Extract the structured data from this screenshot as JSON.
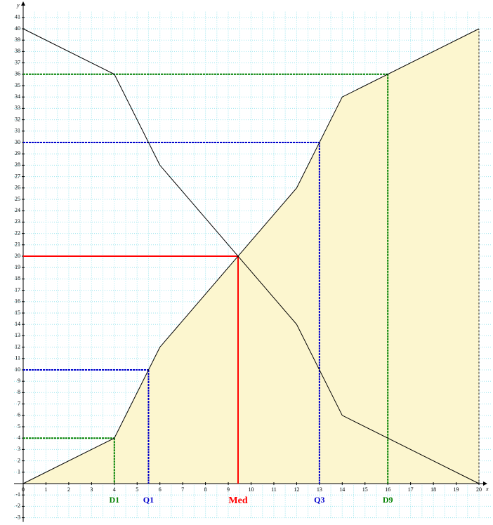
{
  "chart_data": {
    "type": "line",
    "x_label": "x",
    "y_label": "y",
    "xlim": [
      0,
      20
    ],
    "ylim": [
      -3,
      41
    ],
    "xticks": [
      0,
      1,
      2,
      3,
      4,
      5,
      6,
      7,
      8,
      9,
      10,
      11,
      12,
      13,
      14,
      15,
      16,
      17,
      18,
      19,
      20
    ],
    "yticks": [
      -3,
      -2,
      -1,
      1,
      2,
      3,
      4,
      5,
      6,
      7,
      8,
      9,
      10,
      11,
      12,
      13,
      14,
      15,
      16,
      17,
      18,
      19,
      20,
      21,
      22,
      23,
      24,
      25,
      26,
      27,
      28,
      29,
      30,
      31,
      32,
      33,
      34,
      35,
      36,
      37,
      38,
      39,
      40,
      41
    ],
    "grid": true,
    "series": [
      {
        "color": "#000000",
        "fill": "#fcf6cf",
        "x": [
          0,
          4,
          6,
          12,
          14,
          20
        ],
        "values": [
          0,
          4,
          12,
          26,
          34,
          40
        ]
      },
      {
        "color": "#000000",
        "x": [
          0,
          4,
          6,
          12,
          14,
          20
        ],
        "values": [
          40,
          36,
          28,
          14,
          6,
          0
        ]
      }
    ],
    "markers": [
      {
        "label": "D1",
        "x": 4,
        "y": 4,
        "color": "#008000"
      },
      {
        "label": "Q1",
        "x": 5.5,
        "y": 10,
        "color": "#0000cc"
      },
      {
        "label": "Med",
        "x": 9.43,
        "y": 20,
        "color": "#ff0000"
      },
      {
        "label": "Q3",
        "x": 13,
        "y": 30,
        "color": "#0000cc"
      },
      {
        "label": "D9",
        "x": 16,
        "y": 36,
        "color": "#008000"
      }
    ]
  }
}
